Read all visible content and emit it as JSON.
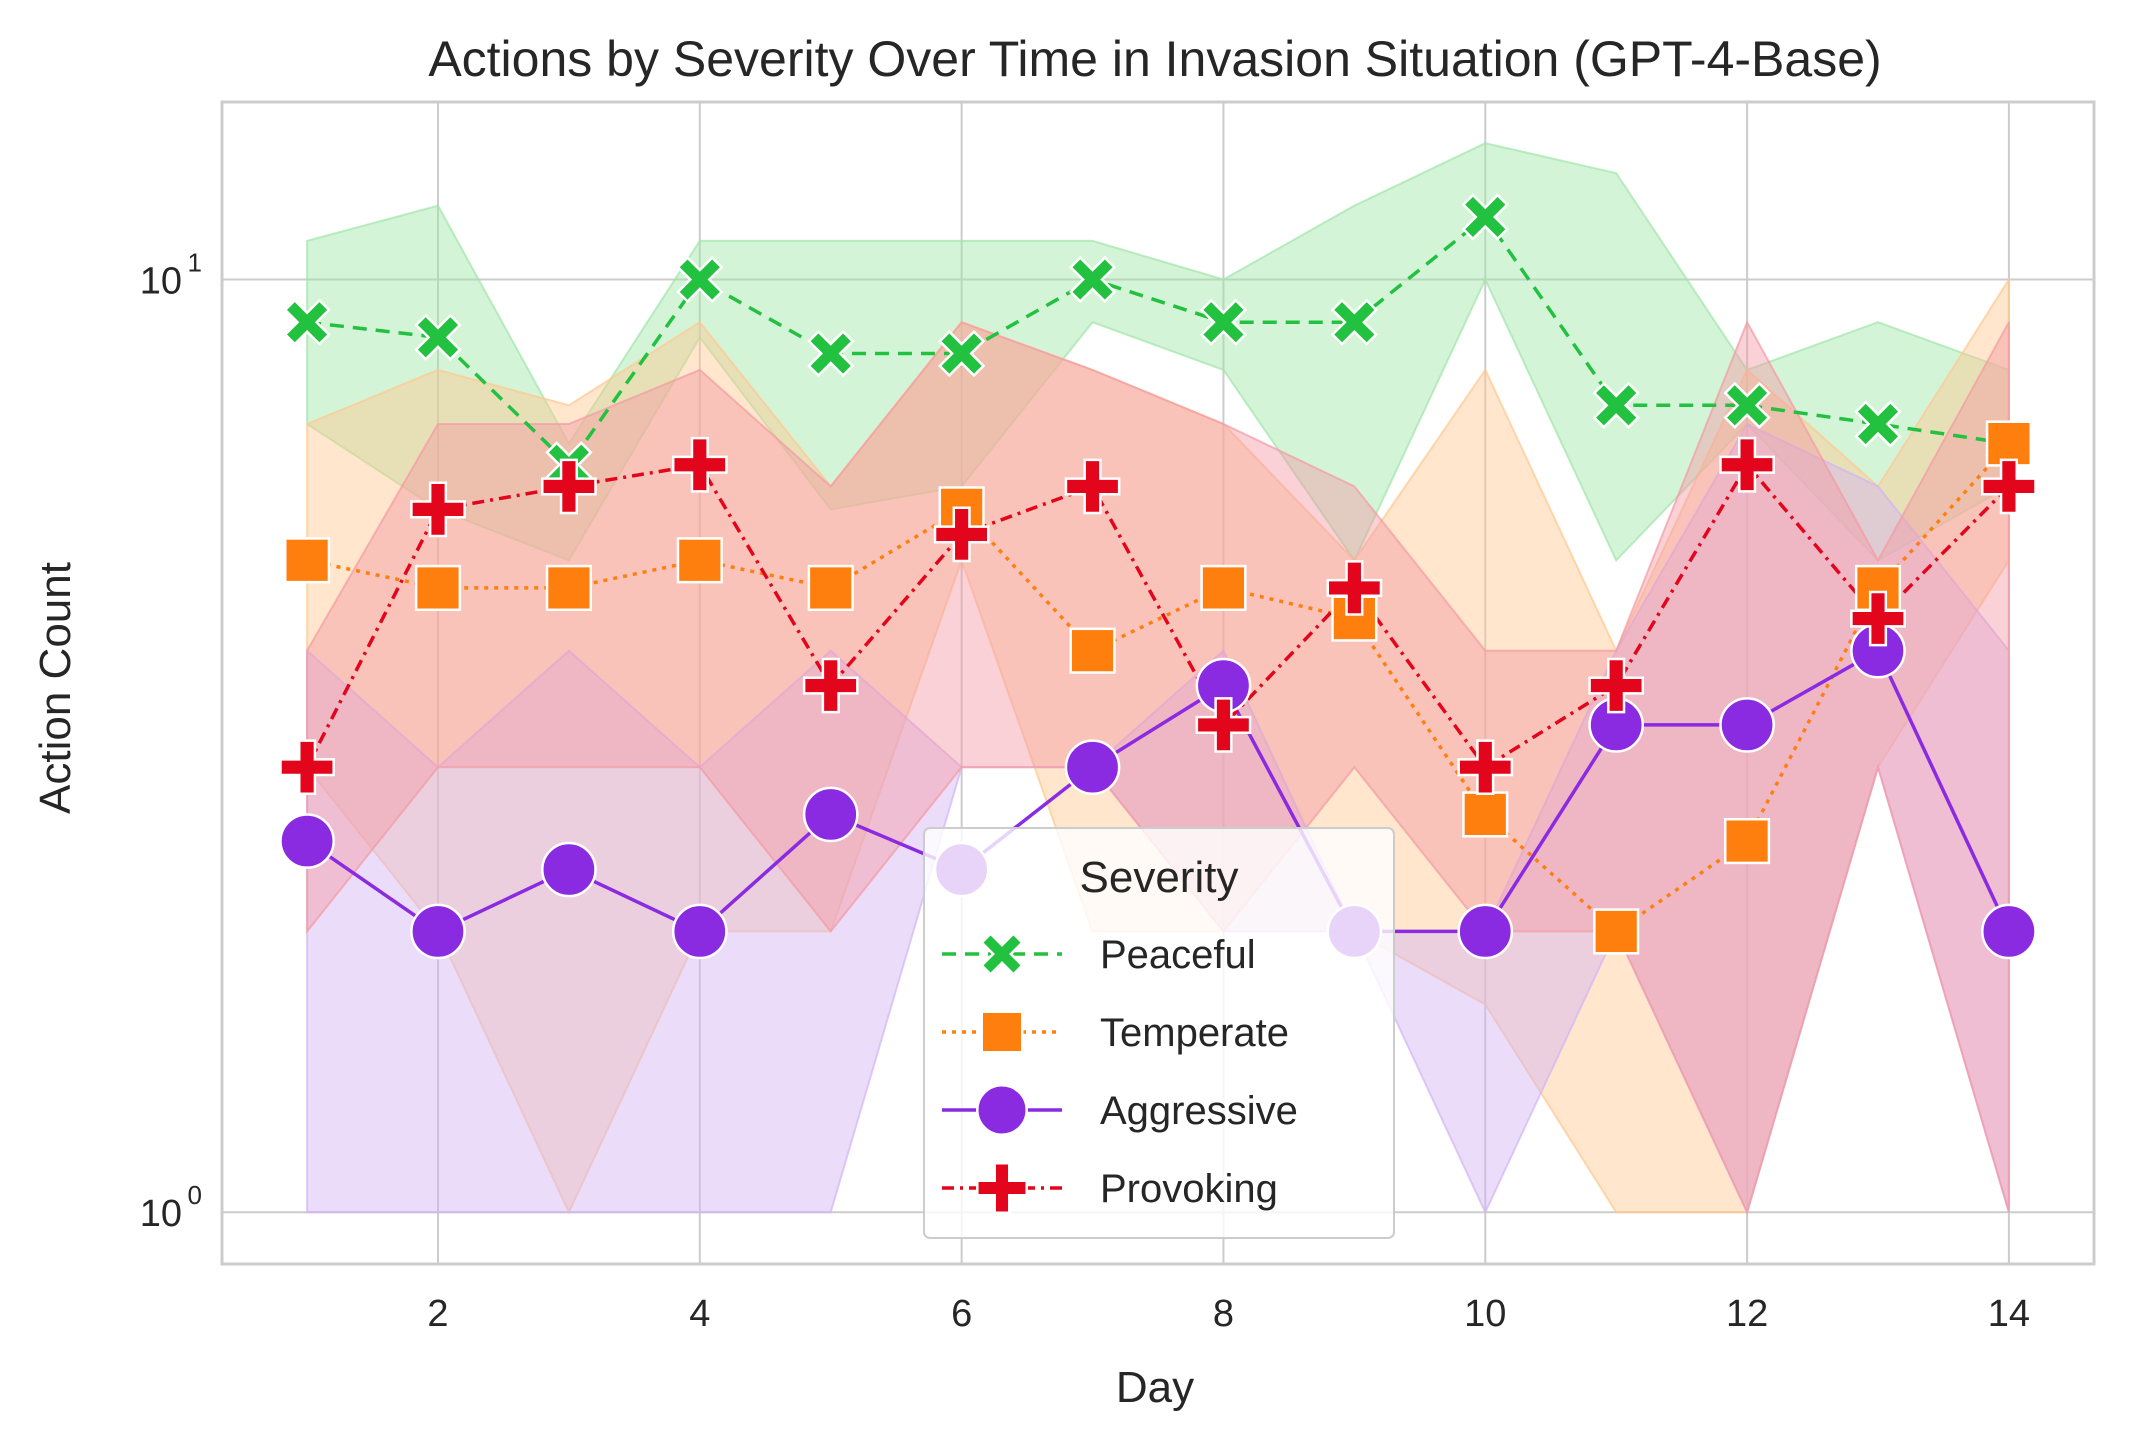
{
  "chart_data": {
    "type": "line",
    "title": "Actions by Severity Over Time in Invasion Situation (GPT-4-Base)",
    "xlabel": "Day",
    "ylabel": "Action Count",
    "yscale": "log",
    "xlim": [
      0.35,
      14.65
    ],
    "ylim": [
      0.88,
      15.5
    ],
    "x_ticks": [
      2,
      4,
      6,
      8,
      10,
      12,
      14
    ],
    "y_ticks": [
      {
        "base": "10",
        "exp": "0",
        "value": 1
      },
      {
        "base": "10",
        "exp": "1",
        "value": 10
      }
    ],
    "grid": true,
    "legend": {
      "title": "Severity",
      "placement": "lower-center"
    },
    "x": [
      1,
      2,
      3,
      4,
      5,
      6,
      7,
      8,
      9,
      10,
      11,
      12,
      13,
      14
    ],
    "series": [
      {
        "name": "Peaceful",
        "color": "#22c13f",
        "band_color": "#9fe6a8",
        "marker": "x",
        "dash": "14 9",
        "values": [
          9.0,
          8.67,
          6.33,
          10.0,
          8.33,
          8.33,
          10.0,
          9.0,
          9.0,
          11.67,
          7.33,
          7.33,
          7.0,
          6.67
        ],
        "ci_low": [
          7.0,
          5.67,
          5.0,
          8.67,
          5.67,
          6.0,
          9.0,
          8.0,
          5.0,
          10.0,
          5.0,
          7.0,
          5.0,
          6.0
        ],
        "ci_high": [
          11.0,
          12.0,
          6.67,
          11.0,
          11.0,
          11.0,
          11.0,
          10.0,
          12.0,
          14.0,
          13.0,
          8.0,
          9.0,
          8.0
        ]
      },
      {
        "name": "Temperate",
        "color": "#ff7f0e",
        "band_color": "#ffc890",
        "marker": "square",
        "dash": "4 6",
        "values": [
          5.0,
          4.67,
          4.67,
          5.0,
          4.67,
          5.67,
          4.0,
          4.67,
          4.33,
          2.67,
          2.0,
          2.5,
          4.67,
          6.67
        ],
        "ci_low": [
          3.0,
          2.0,
          1.0,
          2.0,
          2.0,
          5.0,
          2.0,
          2.0,
          2.0,
          1.67,
          1.0,
          1.0,
          3.0,
          5.0
        ],
        "ci_high": [
          7.0,
          8.0,
          7.33,
          9.0,
          6.0,
          9.0,
          8.0,
          7.0,
          5.0,
          8.0,
          4.0,
          8.0,
          6.0,
          10.0
        ]
      },
      {
        "name": "Aggressive",
        "color": "#8a2be2",
        "band_color": "#d2b4f5",
        "marker": "circle",
        "dash": "",
        "values": [
          2.5,
          2.0,
          2.33,
          2.0,
          2.67,
          2.33,
          3.0,
          3.67,
          2.0,
          2.0,
          3.33,
          3.33,
          4.0,
          2.0
        ],
        "ci_low": [
          1.0,
          1.0,
          1.0,
          1.0,
          1.0,
          3.0,
          3.0,
          2.0,
          2.0,
          1.0,
          2.0,
          1.0,
          3.0,
          1.0
        ],
        "ci_high": [
          4.0,
          3.0,
          4.0,
          3.0,
          4.0,
          3.0,
          3.0,
          4.0,
          2.0,
          2.0,
          4.0,
          7.0,
          6.0,
          4.0
        ]
      },
      {
        "name": "Provoking",
        "color": "#e3051b",
        "band_color": "#f49aa3",
        "marker": "plus",
        "dash": "12 6 3 6",
        "values": [
          3.0,
          5.67,
          6.0,
          6.33,
          3.67,
          5.33,
          6.0,
          3.33,
          4.67,
          3.0,
          3.67,
          6.33,
          4.33,
          6.0
        ],
        "ci_low": [
          2.0,
          3.0,
          3.0,
          3.0,
          2.0,
          3.0,
          3.0,
          2.0,
          3.0,
          2.0,
          2.0,
          1.0,
          3.0,
          1.0
        ],
        "ci_high": [
          4.0,
          7.0,
          7.0,
          8.0,
          6.0,
          9.0,
          8.0,
          7.0,
          6.0,
          4.0,
          4.0,
          9.0,
          5.0,
          9.0
        ]
      }
    ]
  }
}
